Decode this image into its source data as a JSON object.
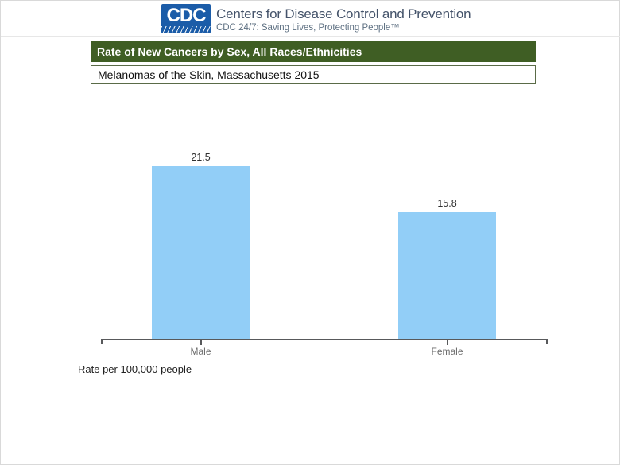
{
  "header": {
    "logo_text": "CDC",
    "org_name": "Centers for Disease Control and Prevention",
    "tagline": "CDC 24/7: Saving Lives, Protecting People™"
  },
  "banner": {
    "title": "Rate of New Cancers by Sex, All Races/Ethnicities",
    "subtitle": "Melanomas of the Skin, Massachusetts 2015"
  },
  "chart_data": {
    "type": "bar",
    "categories": [
      "Male",
      "Female"
    ],
    "values": [
      21.5,
      15.8
    ],
    "value_labels": [
      "21.5",
      "15.8"
    ],
    "title": "Rate of New Cancers by Sex, All Races/Ethnicities",
    "subtitle": "Melanomas of the Skin, Massachusetts 2015",
    "xlabel": "",
    "ylabel": "Rate per 100,000 people",
    "ylim": [
      0,
      25
    ],
    "grid": false,
    "legend": false,
    "bar_color": "#92CEF7",
    "axis_color": "#58595B"
  },
  "footnote": "Rate per 100,000 people",
  "colors": {
    "banner_green": "#3F5E24",
    "bar_blue": "#92CEF7",
    "logo_blue": "#1B5CA8"
  }
}
